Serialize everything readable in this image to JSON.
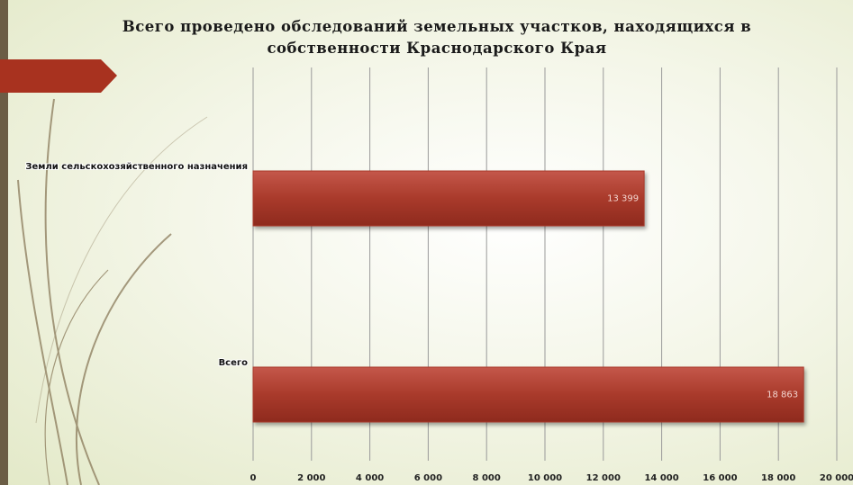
{
  "chart_data": {
    "type": "bar",
    "orientation": "horizontal",
    "title": "Всего проведено обследований земельных участков, находящихся в собственности Краснодарского Края",
    "categories": [
      "Земли сельскохозяйственного назначения",
      "Всего"
    ],
    "values": [
      13399,
      18863
    ],
    "value_labels": [
      "13 399",
      "18 863"
    ],
    "color": "#a93a2b",
    "xlim": [
      0,
      20000
    ],
    "xticks": [
      0,
      {
        "value": 2000,
        "label": "2 000"
      },
      {
        "value": 4000,
        "label": "4 000"
      },
      {
        "value": 6000,
        "label": "6 000"
      },
      {
        "value": 8000,
        "label": "8 000"
      },
      {
        "value": 10000,
        "label": "10 000"
      },
      {
        "value": 12000,
        "label": "12 000"
      },
      {
        "value": 14000,
        "label": "14 000"
      },
      {
        "value": 16000,
        "label": "16 000"
      },
      {
        "value": 18000,
        "label": "18 000"
      },
      {
        "value": 20000,
        "label": "20 000"
      }
    ],
    "grid": true
  }
}
